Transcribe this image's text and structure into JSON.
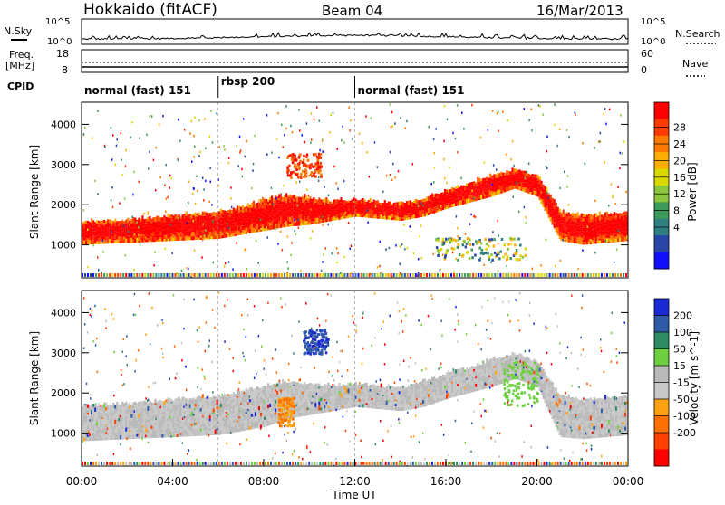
{
  "header": {
    "title": "Hokkaido (fitACF)",
    "beam": "Beam 04",
    "date": "16/Mar/2013"
  },
  "strip_labels": {
    "nsky": "N.Sky",
    "freq_line1": "Freq.",
    "freq_line2": "[MHz]",
    "cpid": "CPID",
    "nsearch": "N.Search",
    "nave": "Nave"
  },
  "noise_axis": {
    "left_ticks": [
      "10^5",
      "10^0"
    ],
    "right_ticks": [
      "10^5",
      "10^0"
    ]
  },
  "freq_axis": {
    "left_ticks": [
      "18",
      "8"
    ],
    "right_ticks": [
      "60",
      "0"
    ]
  },
  "cpid_segments": [
    {
      "label": "normal (fast) 151",
      "start": 0,
      "end": 6
    },
    {
      "label": "rbsp 200",
      "start": 6,
      "end": 12
    },
    {
      "label": "normal (fast) 151",
      "start": 12,
      "end": 24
    }
  ],
  "chart_data": [
    {
      "type": "heatmap",
      "panel": "power",
      "ylabel": "Slant Range [km]",
      "ylim": [
        180,
        4550
      ],
      "xlim_hours": [
        0,
        24
      ],
      "y_ticks": [
        1000,
        2000,
        3000,
        4000
      ],
      "colorbar": {
        "label": "Power [dB]",
        "ticks": [
          "28",
          "24",
          "20",
          "16",
          "12",
          "8",
          "4"
        ],
        "colors": [
          "#ff0000",
          "#ff3a00",
          "#ff7a00",
          "#ffae00",
          "#d9d900",
          "#8cc63e",
          "#3c9a5a",
          "#2e7e82",
          "#2846a8",
          "#1010ff"
        ]
      },
      "bands": [
        {
          "name": "main-echo",
          "color_key": "high",
          "x": [
            0,
            2,
            4,
            6,
            7,
            8,
            9,
            10,
            11,
            12,
            13,
            14,
            15,
            16,
            17,
            18,
            19,
            20,
            21,
            22,
            23,
            24
          ],
          "y_low": [
            1000,
            1050,
            1100,
            1150,
            1250,
            1350,
            1450,
            1500,
            1600,
            1700,
            1650,
            1600,
            1700,
            1900,
            2050,
            2200,
            2400,
            2200,
            1100,
            1000,
            1050,
            1100
          ],
          "y_high": [
            1550,
            1600,
            1700,
            1800,
            1900,
            2100,
            2200,
            2150,
            2050,
            2100,
            2050,
            2000,
            2100,
            2350,
            2500,
            2700,
            2850,
            2700,
            1800,
            1700,
            1750,
            1800
          ]
        }
      ],
      "patches": [
        {
          "name": "evening-blob",
          "t": [
            9.0,
            10.5
          ],
          "r": [
            2700,
            3300
          ],
          "level": "high"
        },
        {
          "name": "late-band",
          "t": [
            15.5,
            19.5
          ],
          "r": [
            650,
            1200
          ],
          "level": "mid"
        }
      ]
    },
    {
      "type": "heatmap",
      "panel": "velocity",
      "ylabel": "Slant Range [km]",
      "ylim": [
        180,
        4550
      ],
      "xlim_hours": [
        0,
        24
      ],
      "y_ticks": [
        1000,
        2000,
        3000,
        4000
      ],
      "x_ticks": [
        "00:00",
        "04:00",
        "08:00",
        "12:00",
        "16:00",
        "20:00",
        "00:00"
      ],
      "xlabel": "Time UT",
      "colorbar": {
        "label": "Velocity [m s^-1]",
        "ticks": [
          "200",
          "100",
          "50",
          "15",
          "-15",
          "-50",
          "-100",
          "-200"
        ],
        "colors": [
          "#1a2bd6",
          "#2e5aa8",
          "#2e8c64",
          "#6cd040",
          "#b9b9b9",
          "#c8c8c8",
          "#ffa010",
          "#ff7000",
          "#ff4000",
          "#ff0000"
        ]
      },
      "bands": [
        {
          "name": "ground-scatter",
          "color_key": "grey",
          "x": [
            0,
            2,
            4,
            6,
            7,
            8,
            9,
            10,
            11,
            12,
            13,
            14,
            15,
            16,
            17,
            18,
            19,
            20,
            21,
            22,
            23,
            24
          ],
          "y_low": [
            800,
            850,
            900,
            950,
            1050,
            1150,
            1350,
            1450,
            1550,
            1650,
            1600,
            1550,
            1650,
            1850,
            2000,
            2150,
            2350,
            2150,
            900,
            850,
            900,
            950
          ],
          "y_high": [
            1650,
            1700,
            1800,
            1900,
            2000,
            2150,
            2250,
            2200,
            2150,
            2200,
            2150,
            2100,
            2250,
            2450,
            2600,
            2800,
            2950,
            2750,
            1900,
            1800,
            1850,
            1900
          ]
        }
      ],
      "patches": [
        {
          "name": "positive-flow",
          "t": [
            9.7,
            10.8
          ],
          "r": [
            3000,
            3600
          ],
          "level": "pos"
        },
        {
          "name": "negative-flow",
          "t": [
            8.6,
            9.3
          ],
          "r": [
            1200,
            1900
          ],
          "level": "neg"
        },
        {
          "name": "green-arc",
          "t": [
            18.5,
            20.0
          ],
          "r": [
            1700,
            2800
          ],
          "level": "lowpos"
        }
      ]
    }
  ]
}
